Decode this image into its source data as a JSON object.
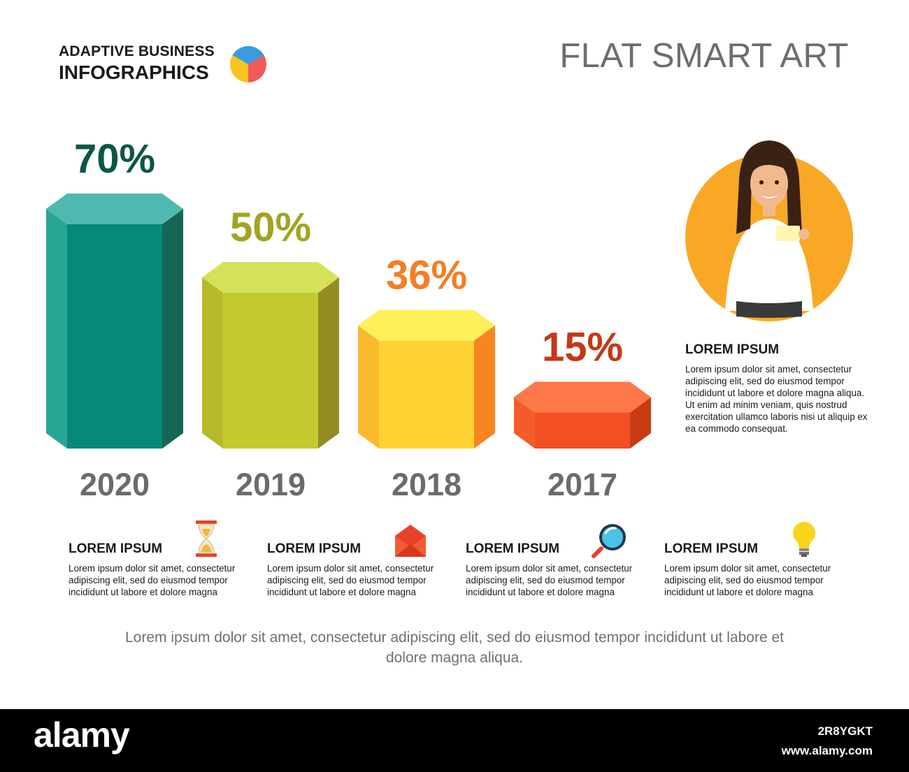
{
  "header": {
    "brand_line1": "ADAPTIVE BUSINESS",
    "brand_line2": "INFOGRAPHICS",
    "title": "FLAT SMART ART"
  },
  "chart_data": {
    "type": "bar",
    "style": "3d-octagonal-prism",
    "categories": [
      "2020",
      "2019",
      "2018",
      "2017"
    ],
    "values": [
      70,
      50,
      36,
      15
    ],
    "value_labels": [
      "70%",
      "50%",
      "36%",
      "15%"
    ],
    "unit": "%",
    "colors": {
      "bar_front": [
        "#06897a",
        "#c3ca2e",
        "#fed233",
        "#f24f22"
      ],
      "bar_left": [
        "#29a594",
        "#b5b92a",
        "#fbba2e",
        "#f35b28"
      ],
      "bar_right": [
        "#166557",
        "#938d23",
        "#f78621",
        "#c83c14"
      ],
      "bar_top": [
        "#4fb9b1",
        "#d6e15a",
        "#fff05a",
        "#fe7748"
      ],
      "label": [
        "#0b5648",
        "#a1a422",
        "#f27f25",
        "#c3391a"
      ]
    }
  },
  "side_panel": {
    "title": "LOREM IPSUM",
    "body": "Lorem ipsum dolor sit amet, consectetur adipiscing elit, sed do eiusmod tempor incididunt ut labore et dolore magna aliqua. Ut enim ad minim veniam, quis nostrud exercitation ullamco laboris nisi ut aliquip ex ea commodo consequat."
  },
  "cards": [
    {
      "title": "LOREM IPSUM",
      "icon": "hourglass-icon",
      "body": "Lorem ipsum dolor sit amet, consectetur adipiscing elit, sed do eiusmod tempor incididunt ut labore et dolore magna"
    },
    {
      "title": "LOREM IPSUM",
      "icon": "envelope-icon",
      "body": "Lorem ipsum dolor sit amet, consectetur adipiscing elit, sed do eiusmod tempor incididunt ut labore et dolore magna"
    },
    {
      "title": "LOREM IPSUM",
      "icon": "magnifier-icon",
      "body": "Lorem ipsum dolor sit amet, consectetur adipiscing elit, sed do eiusmod tempor incididunt ut labore et dolore magna"
    },
    {
      "title": "LOREM IPSUM",
      "icon": "lightbulb-icon",
      "body": "Lorem ipsum dolor sit amet, consectetur adipiscing elit, sed do eiusmod tempor incididunt ut labore et dolore magna"
    }
  ],
  "footer": {
    "text": "Lorem ipsum dolor sit amet, consectetur adipiscing elit, sed do eiusmod tempor incididunt ut labore et dolore magna aliqua."
  },
  "watermark": {
    "logo": "alamy",
    "image_id": "2R8YGKT",
    "url": "www.alamy.com"
  }
}
